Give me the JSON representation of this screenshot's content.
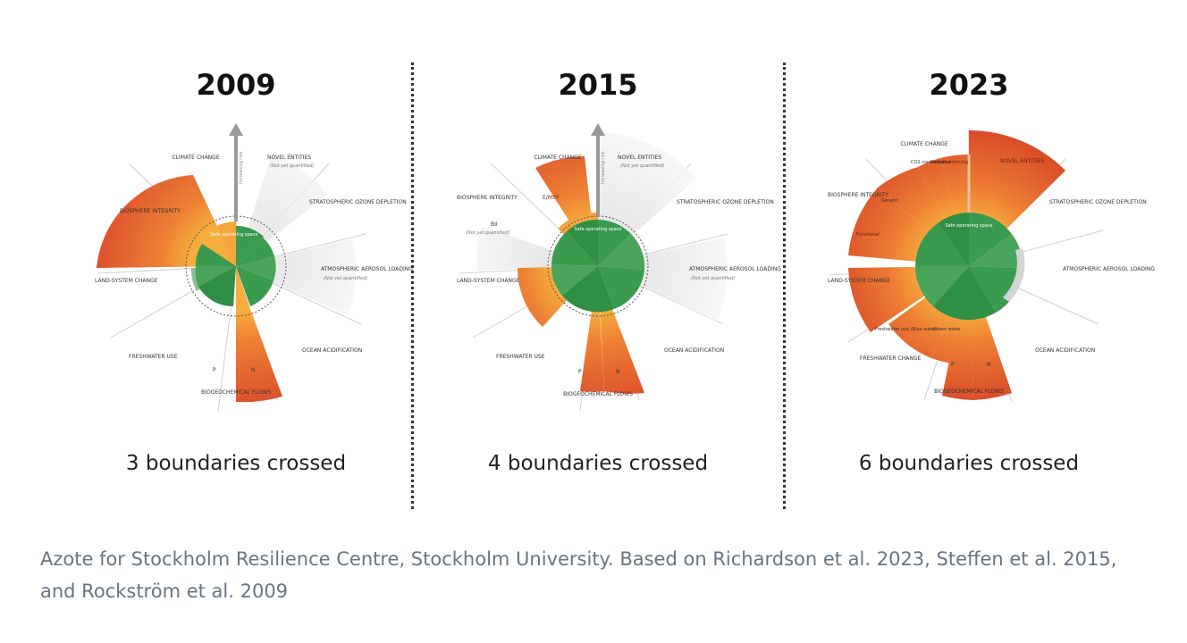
{
  "colors": {
    "safe_green": "#3a9a4e",
    "zone_orange": "#f39b2f",
    "high_risk_red": "#d6432a",
    "not_quantified_gray": "#d9d9d9",
    "text": "#222222",
    "caption": "#6b7380"
  },
  "axis_label": "Increasing risk",
  "safe_label": "Safe operating space",
  "panels": [
    {
      "year": "2009",
      "crossed": "3 boundaries crossed",
      "labels": {
        "climate": "CLIMATE CHANGE",
        "novel": "NOVEL ENTITIES",
        "novel_note": "(Not yet quantified)",
        "ozone": "STRATOSPHERIC OZONE DEPLETION",
        "aerosol": "ATMOSPHERIC AEROSOL LOADING",
        "aerosol_note": "(Not yet quantified)",
        "ocean": "OCEAN ACIDIFICATION",
        "bgc": "BIOGEOCHEMICAL FLOWS",
        "p": "P",
        "n": "N",
        "fresh": "FRESHWATER USE",
        "land": "LAND-SYSTEM CHANGE",
        "bio": "BIOSPHERE INTEGRITY"
      }
    },
    {
      "year": "2015",
      "crossed": "4 boundaries crossed",
      "labels": {
        "climate": "CLIMATE CHANGE",
        "novel": "NOVEL ENTITIES",
        "novel_note": "(Not yet quantified)",
        "ozone": "STRATOSPHERIC OZONE DEPLETION",
        "aerosol": "ATMOSPHERIC AEROSOL LOADING",
        "aerosol_note": "(Not yet quantified)",
        "ocean": "OCEAN ACIDIFICATION",
        "bgc": "BIOGEOCHEMICAL FLOWS",
        "p": "P",
        "n": "N",
        "fresh": "FRESHWATER USE",
        "land": "LAND-SYSTEM CHANGE",
        "bio": "BIOSPHERE INTEGRITY",
        "emsy": "E/MSY",
        "bii": "BII",
        "bii_note": "(Not yet quantified)"
      }
    },
    {
      "year": "2023",
      "crossed": "6 boundaries crossed",
      "labels": {
        "climate": "CLIMATE CHANGE",
        "co2": "CO2 concentration",
        "forcing": "Radiative forcing",
        "novel": "NOVEL ENTITIES",
        "ozone": "STRATOSPHERIC OZONE DEPLETION",
        "aerosol": "ATMOSPHERIC AEROSOL LOADING",
        "ocean": "OCEAN ACIDIFICATION",
        "bgc": "BIOGEOCHEMICAL FLOWS",
        "p": "P",
        "n": "N",
        "fresh": "FRESHWATER CHANGE",
        "blue": "Freshwater use (Blue water)",
        "green": "Green water",
        "land": "LAND-SYSTEM CHANGE",
        "bio": "BIOSPHERE INTEGRITY",
        "genetic": "Genetic",
        "functional": "Functional"
      }
    }
  ],
  "caption": "Azote for Stockholm Resilience Centre, Stockholm University. Based on Richardson et al. 2023, Steffen et al. 2015, and Rockström et al. 2009"
}
